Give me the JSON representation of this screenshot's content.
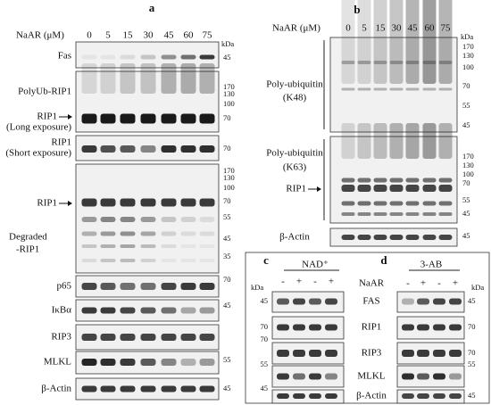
{
  "panel_a": {
    "label": "a",
    "treatment": "NaAR (μM)",
    "doses": [
      0,
      5,
      15,
      30,
      45,
      60,
      75
    ],
    "kda": "kDa",
    "blots": [
      {
        "labels": [
          "Fas"
        ],
        "markers": [
          45
        ]
      },
      {
        "labels": [
          "PolyUb-RIP1",
          "RIP1",
          "(Long exposure)"
        ],
        "markers": [
          170,
          130,
          100,
          70
        ]
      },
      {
        "labels": [
          "RIP1",
          "(Short exposure)"
        ],
        "markers": [
          70
        ]
      },
      {
        "labels": [
          "RIP1",
          "Degraded",
          "-RIP1"
        ],
        "markers": [
          170,
          130,
          100,
          70,
          55,
          45,
          35
        ]
      },
      {
        "labels": [
          "p65"
        ],
        "markers": [
          70
        ]
      },
      {
        "labels": [
          "IκBα"
        ],
        "markers": [
          45
        ]
      },
      {
        "labels": [
          "RIP3"
        ],
        "markers": []
      },
      {
        "labels": [
          "MLKL"
        ],
        "markers": [
          55
        ]
      },
      {
        "labels": [
          "β-Actin"
        ],
        "markers": [
          45
        ]
      }
    ]
  },
  "panel_b": {
    "label": "b",
    "treatment": "NaAR (μM)",
    "doses": [
      0,
      5,
      15,
      30,
      45,
      60,
      75
    ],
    "kda": "kDa",
    "blots": [
      {
        "labels": [
          "Poly-ubiquitin",
          "(K48)"
        ],
        "markers": [
          170,
          130,
          100,
          70,
          55,
          45
        ]
      },
      {
        "labels": [
          "Poly-ubiquitin",
          "(K63)",
          "RIP1"
        ],
        "markers": [
          170,
          130,
          100,
          70,
          55,
          45
        ]
      },
      {
        "labels": [
          "β-Actin"
        ],
        "markers": [
          45
        ]
      }
    ]
  },
  "panel_c": {
    "label": "c",
    "treatment": "NAD⁺",
    "signs": [
      "-",
      "+",
      "-",
      "+"
    ],
    "kda": "kDa",
    "blots": [
      {
        "markers": [
          45
        ]
      },
      {
        "markers": [
          70
        ]
      },
      {
        "markers": [
          70
        ]
      },
      {
        "markers": [
          55
        ]
      },
      {
        "markers": [
          45
        ]
      }
    ]
  },
  "panel_d": {
    "label": "d",
    "treatment": "3-AB",
    "row_label": "NaAR",
    "signs": [
      "-",
      "+",
      "-",
      "+"
    ],
    "kda": "kDa",
    "blots": [
      {
        "labels": [
          "FAS"
        ],
        "markers": [
          45
        ]
      },
      {
        "labels": [
          "RIP1"
        ],
        "markers": [
          70
        ]
      },
      {
        "labels": [
          "RIP3"
        ],
        "markers": [
          70
        ]
      },
      {
        "labels": [
          "MLKL"
        ],
        "markers": [
          55
        ]
      },
      {
        "labels": [
          "β-Actin"
        ],
        "markers": [
          45
        ]
      }
    ]
  }
}
